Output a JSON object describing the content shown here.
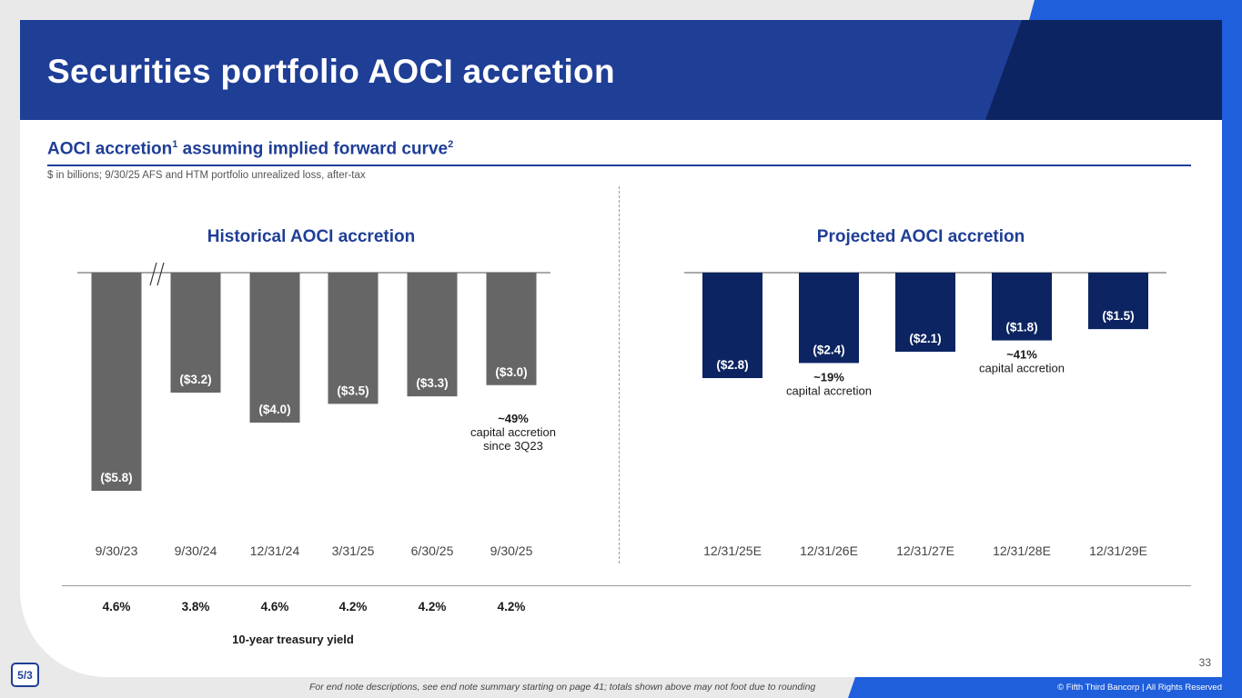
{
  "header": {
    "title": "Securities portfolio AOCI accretion"
  },
  "subtitle": {
    "text": "AOCI accretion",
    "sup1": "1",
    "rest": " assuming implied forward curve",
    "sup2": "2"
  },
  "note": "$ in billions; 9/30/25 AFS and HTM portfolio unrealized loss, after-tax",
  "colors": {
    "brand_blue": "#1f3e96",
    "dark_navy": "#0c2461",
    "bar_gray": "#666666",
    "accent_blue": "#1f5fdc"
  },
  "chart_data": [
    {
      "type": "bar",
      "title": "Historical AOCI accretion",
      "categories": [
        "9/30/23",
        "9/30/24",
        "12/31/24",
        "3/31/25",
        "6/30/25",
        "9/30/25"
      ],
      "values": [
        -5.8,
        -3.2,
        -4.0,
        -3.5,
        -3.3,
        -3.0
      ],
      "labels": [
        "($5.8)",
        "($3.2)",
        "($4.0)",
        "($3.5)",
        "($3.3)",
        "($3.0)"
      ],
      "axis_break_after": "9/30/23",
      "annotation": [
        "~49%",
        "capital accretion",
        "since 3Q23"
      ]
    },
    {
      "type": "bar",
      "title": "Projected AOCI accretion",
      "categories": [
        "12/31/25E",
        "12/31/26E",
        "12/31/27E",
        "12/31/28E",
        "12/31/29E"
      ],
      "values": [
        -2.8,
        -2.4,
        -2.1,
        -1.8,
        -1.5
      ],
      "labels": [
        "($2.8)",
        "($2.4)",
        "($2.1)",
        "($1.8)",
        "($1.5)"
      ],
      "annotations": [
        {
          "under": "12/31/26E",
          "lines": [
            "~19%",
            "capital accretion"
          ]
        },
        {
          "under": "12/31/28E",
          "lines": [
            "~41%",
            "capital accretion"
          ]
        }
      ]
    }
  ],
  "yields": {
    "label": "10-year treasury yield",
    "values": [
      "4.6%",
      "3.8%",
      "4.6%",
      "4.2%",
      "4.2%",
      "4.2%"
    ]
  },
  "page_number": "33",
  "logo_text": "5/3",
  "footnote": "For end note descriptions, see end note summary starting on page 41; totals shown above may not foot due to rounding",
  "copyright": "© Fifth Third Bancorp | All Rights Reserved"
}
